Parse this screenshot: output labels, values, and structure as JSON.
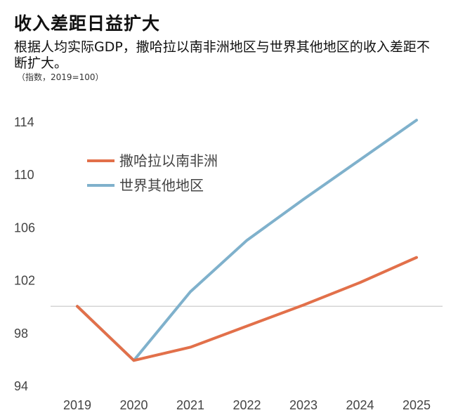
{
  "header": {
    "title": "收入差距日益扩大",
    "subtitle": "根据人均实际GDP，撒哈拉以南非洲地区与世界其他地区的收入差距不断扩大。",
    "note": "（指数，2019=100）"
  },
  "colors": {
    "ssa": "#e2704a",
    "row": "#7fb1cc",
    "ref_line": "#d4d4d4"
  },
  "chart_data": {
    "type": "line",
    "title": "收入差距日益扩大",
    "x": [
      "2019",
      "2020",
      "2021",
      "2022",
      "2023",
      "2024",
      "2025"
    ],
    "series": [
      {
        "name": "撒哈拉以南非洲",
        "values": [
          100,
          95.9,
          96.9,
          98.5,
          100.1,
          101.8,
          103.7
        ]
      },
      {
        "name": "世界其他地区",
        "values": [
          100,
          95.9,
          101.1,
          105.0,
          108.1,
          111.1,
          114.1
        ]
      }
    ],
    "ylim": [
      94,
      116
    ],
    "yticks": [
      94,
      98,
      102,
      106,
      110,
      114
    ],
    "reference_line": 100,
    "legend_position": "top-left",
    "grid": false
  }
}
